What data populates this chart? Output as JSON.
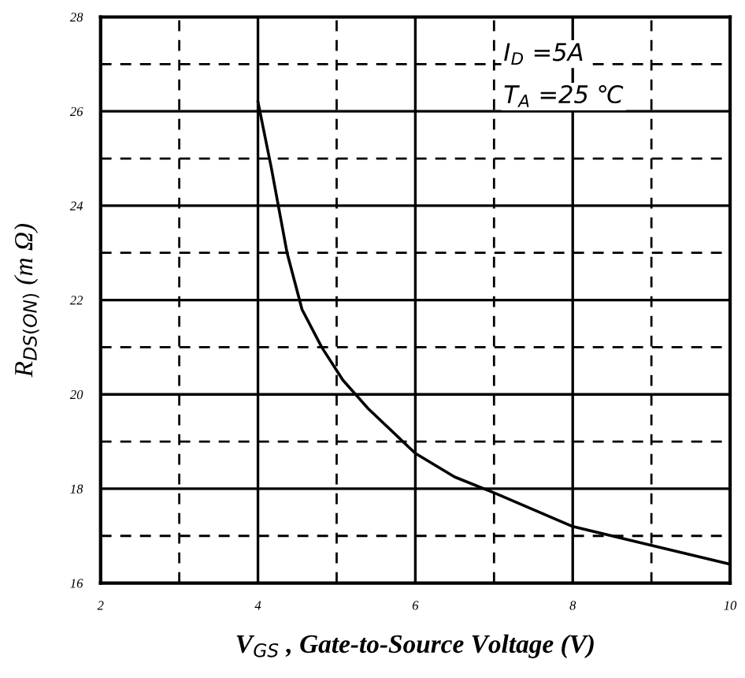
{
  "chart_data": {
    "type": "line",
    "xlabel": "V$_{GS}$ , Gate-to-Source Voltage (V)",
    "ylabel": "R$_{DS(ON)}$ (m Ω)",
    "annotations": [
      "I$_{D}$ =5A",
      "T$_{A}$ =25 ℃"
    ],
    "x": [
      4,
      4.17,
      4.37,
      4.56,
      4.81,
      5.08,
      5.4,
      6.0,
      6.5,
      7.02,
      8,
      9,
      10
    ],
    "series": [
      {
        "color": "#000000",
        "values": [
          26.2,
          24.8,
          23.0,
          21.8,
          21.0,
          20.3,
          19.7,
          18.75,
          18.25,
          17.9,
          17.2,
          16.8,
          16.4
        ]
      }
    ],
    "xlim": [
      2,
      10
    ],
    "ylim": [
      16,
      28
    ],
    "xticks": [
      2,
      {
        "value": 3,
        "label": null
      },
      4,
      {
        "value": 5,
        "label": null
      },
      6,
      {
        "value": 7,
        "label": null
      },
      8,
      {
        "value": 9,
        "label": null
      },
      10
    ],
    "yticks": [
      16,
      {
        "value": 17,
        "label": null
      },
      18,
      {
        "value": 19,
        "label": null
      },
      20,
      {
        "value": 21,
        "label": null
      },
      22,
      {
        "value": 23,
        "label": null
      },
      24,
      {
        "value": 25,
        "label": null
      },
      26,
      {
        "value": 27,
        "label": null
      },
      28
    ],
    "grid": true,
    "line_style": "solid",
    "marker": "none"
  }
}
